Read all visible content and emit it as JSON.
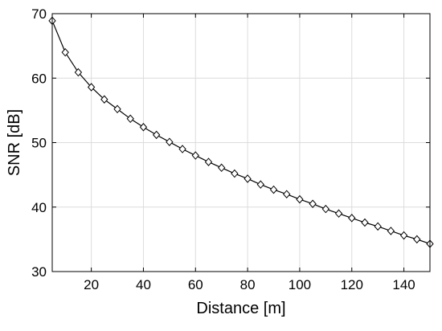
{
  "chart_data": {
    "type": "line",
    "title": "",
    "xlabel": "Distance [m]",
    "ylabel": "SNR [dB]",
    "xlim": [
      5,
      150
    ],
    "ylim": [
      30,
      70
    ],
    "x_ticks": [
      20,
      40,
      60,
      80,
      100,
      120,
      140
    ],
    "y_ticks": [
      30,
      40,
      50,
      60,
      70
    ],
    "grid": true,
    "marker": "diamond",
    "line_color": "#000000",
    "series": [
      {
        "x": [
          5,
          10,
          15,
          20,
          25,
          30,
          35,
          40,
          45,
          50,
          55,
          60,
          65,
          70,
          75,
          80,
          85,
          90,
          95,
          100,
          105,
          110,
          115,
          120,
          125,
          130,
          135,
          140,
          145,
          150
        ],
        "y": [
          68.9,
          64.0,
          60.9,
          58.6,
          56.7,
          55.2,
          53.7,
          52.4,
          51.2,
          50.1,
          49.0,
          48.0,
          47.0,
          46.1,
          45.2,
          44.4,
          43.5,
          42.7,
          42.0,
          41.2,
          40.5,
          39.7,
          39.0,
          38.3,
          37.6,
          37.0,
          36.3,
          35.6,
          35.0,
          34.3
        ]
      }
    ]
  }
}
